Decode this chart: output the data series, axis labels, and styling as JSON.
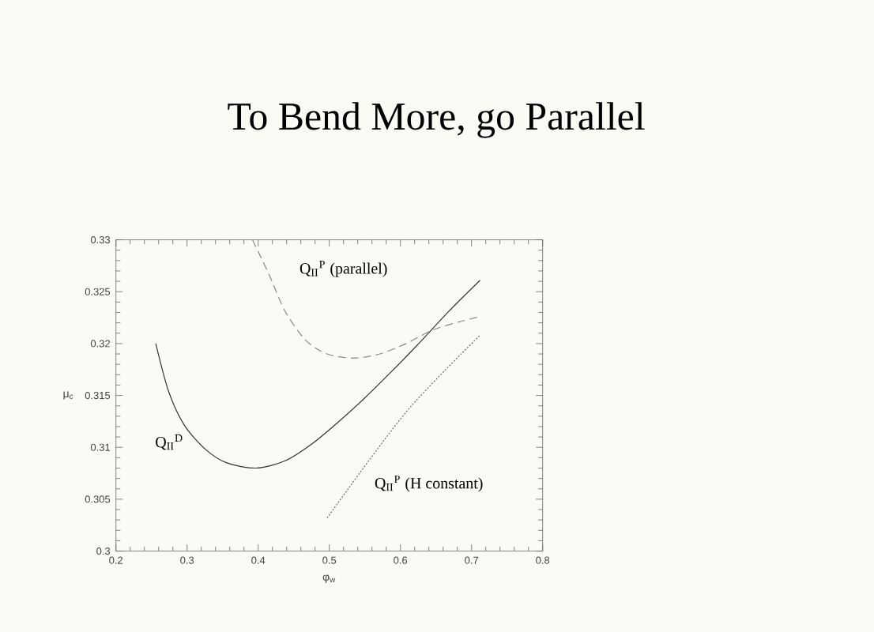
{
  "chart_data": {
    "type": "line",
    "title": "To Bend More, go Parallel",
    "xlabel": "φ$_{w}$",
    "ylabel": "μ$_{c}$",
    "xlim": [
      0.2,
      0.8
    ],
    "ylim": [
      0.3,
      0.33
    ],
    "xticks": [
      0.2,
      0.3,
      0.4,
      0.5,
      0.6,
      0.7,
      0.8
    ],
    "yticks": [
      0.3,
      0.305,
      0.31,
      0.315,
      0.32,
      0.325,
      0.33
    ],
    "grid": false,
    "marker": "none",
    "series": [
      {
        "color": "#333333",
        "line_style": "solid",
        "x": [
          0.256,
          0.274,
          0.2965,
          0.326,
          0.356,
          0.397,
          0.438,
          0.475,
          0.512,
          0.549,
          0.586,
          0.623,
          0.668,
          0.712
        ],
        "values": [
          0.32,
          0.3154,
          0.3121,
          0.3098,
          0.3085,
          0.308,
          0.3087,
          0.3103,
          0.3124,
          0.3147,
          0.3172,
          0.3198,
          0.3231,
          0.3261
        ]
      },
      {
        "color": "#888888",
        "line_style": "dashed",
        "x": [
          0.392,
          0.415,
          0.438,
          0.467,
          0.497,
          0.534,
          0.571,
          0.608,
          0.645,
          0.683,
          0.712
        ],
        "values": [
          0.33,
          0.3267,
          0.3231,
          0.3203,
          0.319,
          0.3186,
          0.319,
          0.32,
          0.3213,
          0.3221,
          0.3226
        ]
      },
      {
        "color": "#666666",
        "line_style": "dotted",
        "x": [
          0.497,
          0.608,
          0.712
        ],
        "values": [
          0.3032,
          0.3134,
          0.3208
        ]
      }
    ],
    "annotations": [
      "Q$_{II}$$^{P}$ (parallel)",
      "Q$_{II}$$^{D}$",
      "Q$_{II}$$^{P}$ (H constant)"
    ]
  }
}
